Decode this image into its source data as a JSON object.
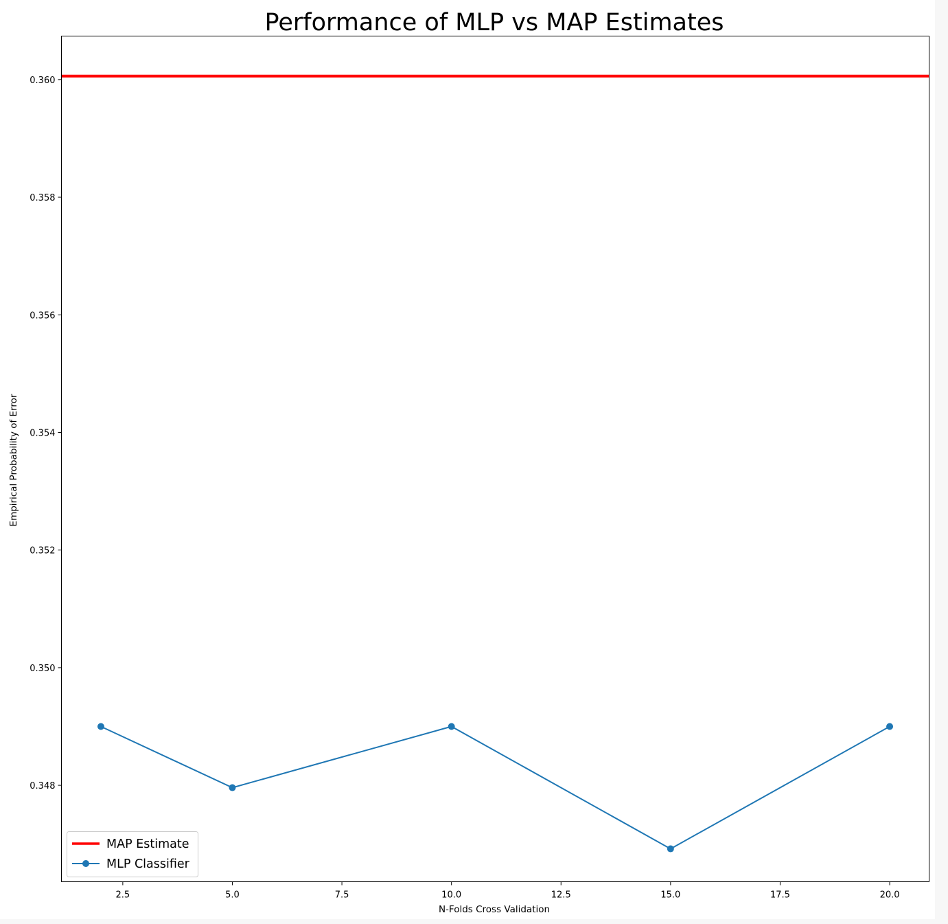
{
  "chart_data": {
    "type": "line",
    "title": "Performance of MLP vs MAP Estimates",
    "xlabel": "N-Folds Cross Validation",
    "ylabel": "Empirical Probability of Error",
    "xlim": [
      1.1,
      20.9
    ],
    "ylim": [
      0.34636,
      0.36074
    ],
    "x_ticks": [
      "2.5",
      "5.0",
      "7.5",
      "10.0",
      "12.5",
      "15.0",
      "17.5",
      "20.0"
    ],
    "x_tick_values": [
      2.5,
      5.0,
      7.5,
      10.0,
      12.5,
      15.0,
      17.5,
      20.0
    ],
    "y_ticks": [
      "0.348",
      "0.350",
      "0.352",
      "0.354",
      "0.356",
      "0.358",
      "0.360"
    ],
    "y_tick_values": [
      0.348,
      0.35,
      0.352,
      0.354,
      0.356,
      0.358,
      0.36
    ],
    "grid": false,
    "legend_position": "lower-left",
    "series": [
      {
        "name": "MAP Estimate",
        "kind": "hline",
        "y": 0.36006,
        "color": "#ff0000"
      },
      {
        "name": "MLP Classifier",
        "kind": "line-markers",
        "x": [
          2,
          5,
          10,
          15,
          20
        ],
        "values": [
          0.349,
          0.34796,
          0.349,
          0.34692,
          0.349
        ],
        "color": "#1f77b4"
      }
    ]
  }
}
